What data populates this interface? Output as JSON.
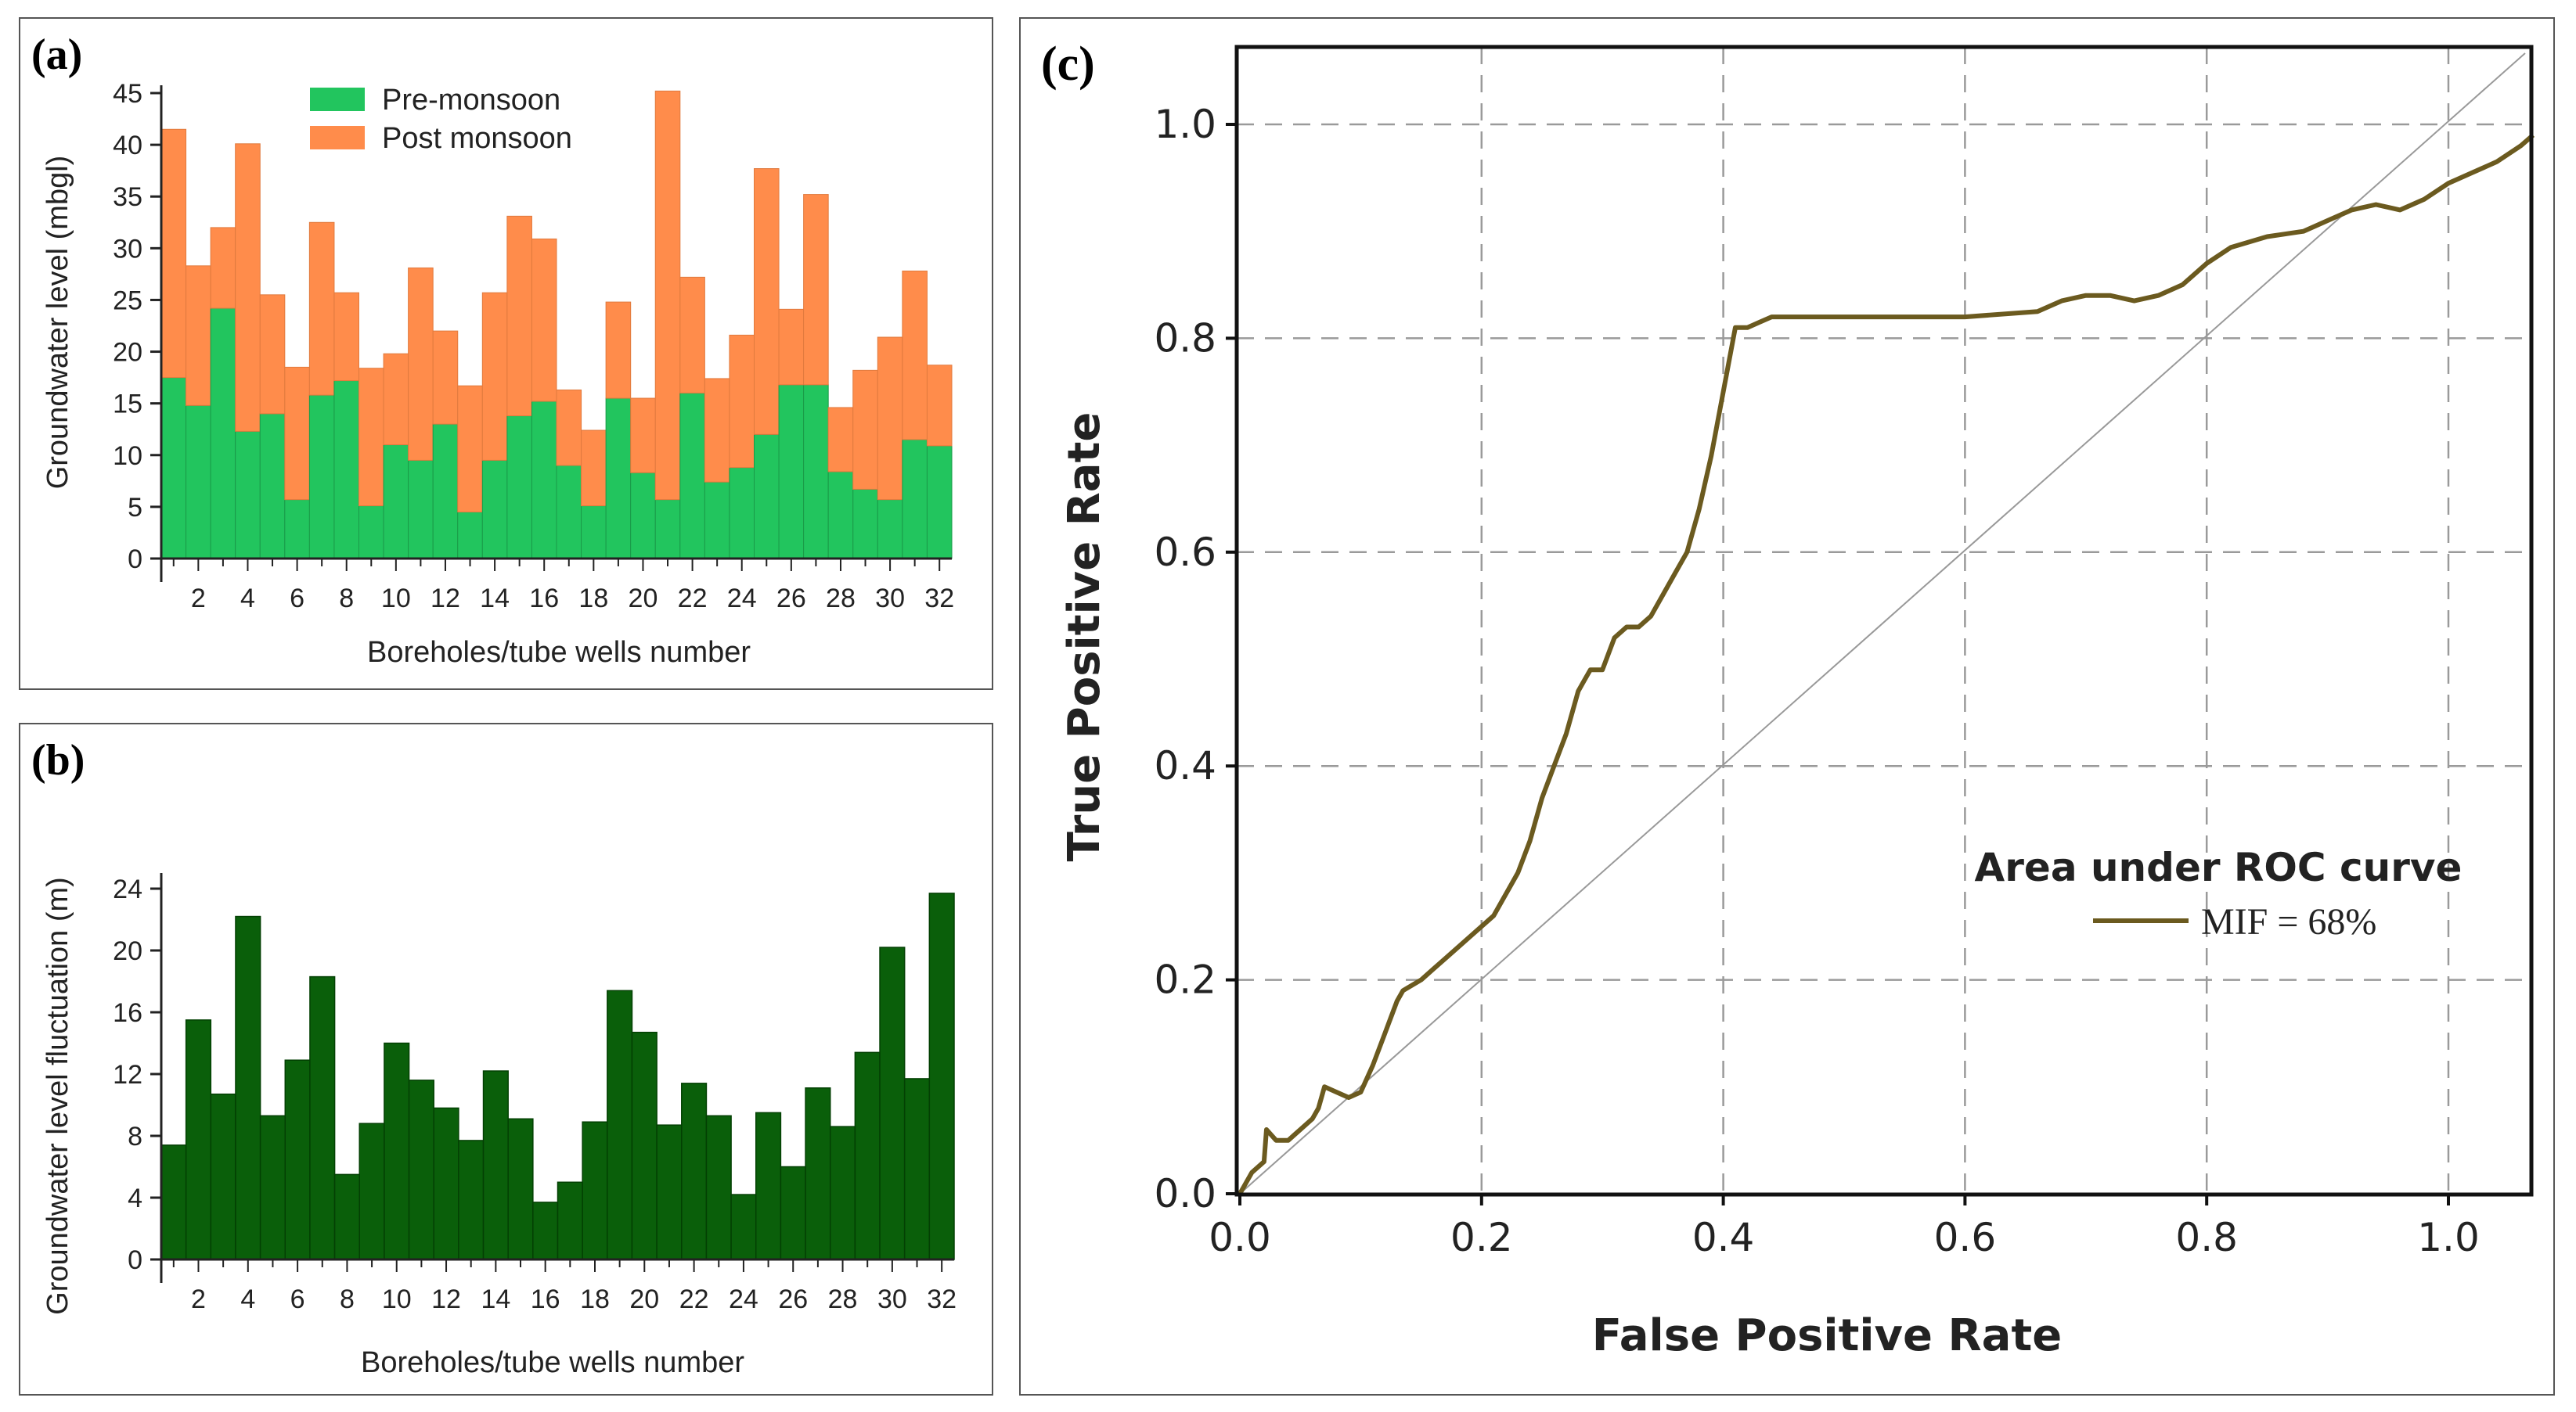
{
  "panels": {
    "a": {
      "label": "(a)"
    },
    "b": {
      "label": "(b)"
    },
    "c": {
      "label": "(c)"
    }
  },
  "colors": {
    "pre": "#22c55e",
    "post": "#ff8c4b",
    "fluct": "#0a5f0a",
    "roc": "#6b5a1f",
    "diag": "#999999",
    "grid": "#9a9a9a"
  },
  "chart_data": [
    {
      "type": "bar",
      "stacked": true,
      "xlabel": "Boreholes/tube wells number",
      "ylabel": "Groundwater level (mbgl)",
      "ylim": [
        0,
        45
      ],
      "yticks": [
        0,
        5,
        10,
        15,
        20,
        25,
        30,
        35,
        40,
        45
      ],
      "xtick_labels": [
        "2",
        "4",
        "6",
        "8",
        "10",
        "12",
        "14",
        "16",
        "18",
        "20",
        "22",
        "24",
        "26",
        "28",
        "30",
        "32"
      ],
      "legend": "top-left",
      "categories": [
        1,
        2,
        3,
        4,
        5,
        6,
        7,
        8,
        9,
        10,
        11,
        12,
        13,
        14,
        15,
        16,
        17,
        18,
        19,
        20,
        21,
        22,
        23,
        24,
        25,
        26,
        27,
        28,
        29,
        30,
        31,
        32
      ],
      "series": [
        {
          "name": "Pre-monsoon",
          "values": [
            17.5,
            14.8,
            24.2,
            12.3,
            14,
            5.7,
            15.8,
            17.2,
            5.1,
            11,
            9.5,
            13,
            4.5,
            9.5,
            13.8,
            15.2,
            9,
            5.1,
            15.5,
            8.3,
            5.7,
            16,
            7.4,
            8.8,
            12,
            16.8,
            16.8,
            8.4,
            6.7,
            5.7,
            11.5,
            10.9
          ]
        },
        {
          "name": "Post monsoon",
          "values": [
            24,
            13.5,
            7.8,
            27.8,
            11.5,
            12.8,
            16.7,
            8.5,
            13.3,
            8.8,
            18.6,
            9,
            12.2,
            16.2,
            19.3,
            15.7,
            7.3,
            7.3,
            9.3,
            7.2,
            39.5,
            11.2,
            10,
            12.8,
            25.7,
            7.3,
            18.4,
            6.2,
            11.5,
            15.7,
            16.3,
            7.8
          ]
        }
      ]
    },
    {
      "type": "bar",
      "xlabel": "Boreholes/tube wells number",
      "ylabel": "Groundwater level fluctuation (m)",
      "ylim": [
        0,
        24
      ],
      "yticks": [
        0,
        4,
        8,
        12,
        16,
        20,
        24
      ],
      "xtick_labels": [
        "2",
        "4",
        "6",
        "8",
        "10",
        "12",
        "14",
        "16",
        "18",
        "20",
        "22",
        "24",
        "26",
        "28",
        "30",
        "32"
      ],
      "categories": [
        1,
        2,
        3,
        4,
        5,
        6,
        7,
        8,
        9,
        10,
        11,
        12,
        13,
        14,
        15,
        16,
        17,
        18,
        19,
        20,
        21,
        22,
        23,
        24,
        25,
        26,
        27,
        28,
        29,
        30,
        31,
        32
      ],
      "values": [
        7.4,
        15.5,
        10.7,
        22.2,
        9.3,
        12.9,
        18.3,
        5.5,
        8.8,
        14,
        11.6,
        9.8,
        7.7,
        12.2,
        9.1,
        3.7,
        5,
        8.9,
        17.4,
        14.7,
        8.7,
        11.4,
        9.3,
        4.2,
        9.5,
        6,
        11.1,
        8.6,
        13.4,
        20.2,
        11.7,
        23.7
      ]
    },
    {
      "type": "line",
      "xlabel": "False Positive Rate",
      "ylabel": "True Positive Rate",
      "xlim": [
        0,
        1.17
      ],
      "ylim": [
        0,
        1.07
      ],
      "xticks": [
        0.0,
        0.2,
        0.4,
        0.6,
        0.8,
        1.0
      ],
      "yticks": [
        0.0,
        0.2,
        0.4,
        0.6,
        0.8,
        1.0
      ],
      "xtick_labels": [
        "0.0",
        "0.2",
        "0.4",
        "0.6",
        "0.8",
        "1.0"
      ],
      "ytick_labels": [
        "0.0",
        "0.2",
        "0.4",
        "0.6",
        "0.8",
        "1.0"
      ],
      "grid": true,
      "legend_title": "Area under ROC curve",
      "legend": "center-right",
      "series": [
        {
          "name": "MIF = 68%",
          "x": [
            0.0,
            0.01,
            0.02,
            0.022,
            0.03,
            0.04,
            0.05,
            0.06,
            0.065,
            0.07,
            0.08,
            0.09,
            0.1,
            0.11,
            0.12,
            0.13,
            0.135,
            0.15,
            0.16,
            0.17,
            0.18,
            0.19,
            0.2,
            0.21,
            0.22,
            0.23,
            0.24,
            0.25,
            0.26,
            0.27,
            0.28,
            0.285,
            0.29,
            0.3,
            0.31,
            0.32,
            0.33,
            0.34,
            0.35,
            0.36,
            0.37,
            0.38,
            0.39,
            0.4,
            0.41,
            0.42,
            0.43,
            0.44,
            0.45,
            0.5,
            0.6,
            0.66,
            0.68,
            0.7,
            0.72,
            0.74,
            0.76,
            0.78,
            0.8,
            0.82,
            0.85,
            0.88,
            0.9,
            0.92,
            0.94,
            0.96,
            0.98,
            1.0,
            1.02,
            1.04,
            1.06,
            1.07
          ],
          "y": [
            0.0,
            0.02,
            0.03,
            0.06,
            0.05,
            0.05,
            0.06,
            0.07,
            0.08,
            0.1,
            0.095,
            0.09,
            0.095,
            0.12,
            0.15,
            0.18,
            0.19,
            0.2,
            0.21,
            0.22,
            0.23,
            0.24,
            0.25,
            0.26,
            0.28,
            0.3,
            0.33,
            0.37,
            0.4,
            0.43,
            0.47,
            0.48,
            0.49,
            0.49,
            0.52,
            0.53,
            0.53,
            0.54,
            0.56,
            0.58,
            0.6,
            0.64,
            0.69,
            0.75,
            0.81,
            0.81,
            0.815,
            0.82,
            0.82,
            0.82,
            0.82,
            0.825,
            0.835,
            0.84,
            0.84,
            0.835,
            0.84,
            0.85,
            0.87,
            0.885,
            0.895,
            0.9,
            0.91,
            0.92,
            0.925,
            0.92,
            0.93,
            0.945,
            0.955,
            0.965,
            0.98,
            0.99
          ]
        }
      ]
    }
  ]
}
